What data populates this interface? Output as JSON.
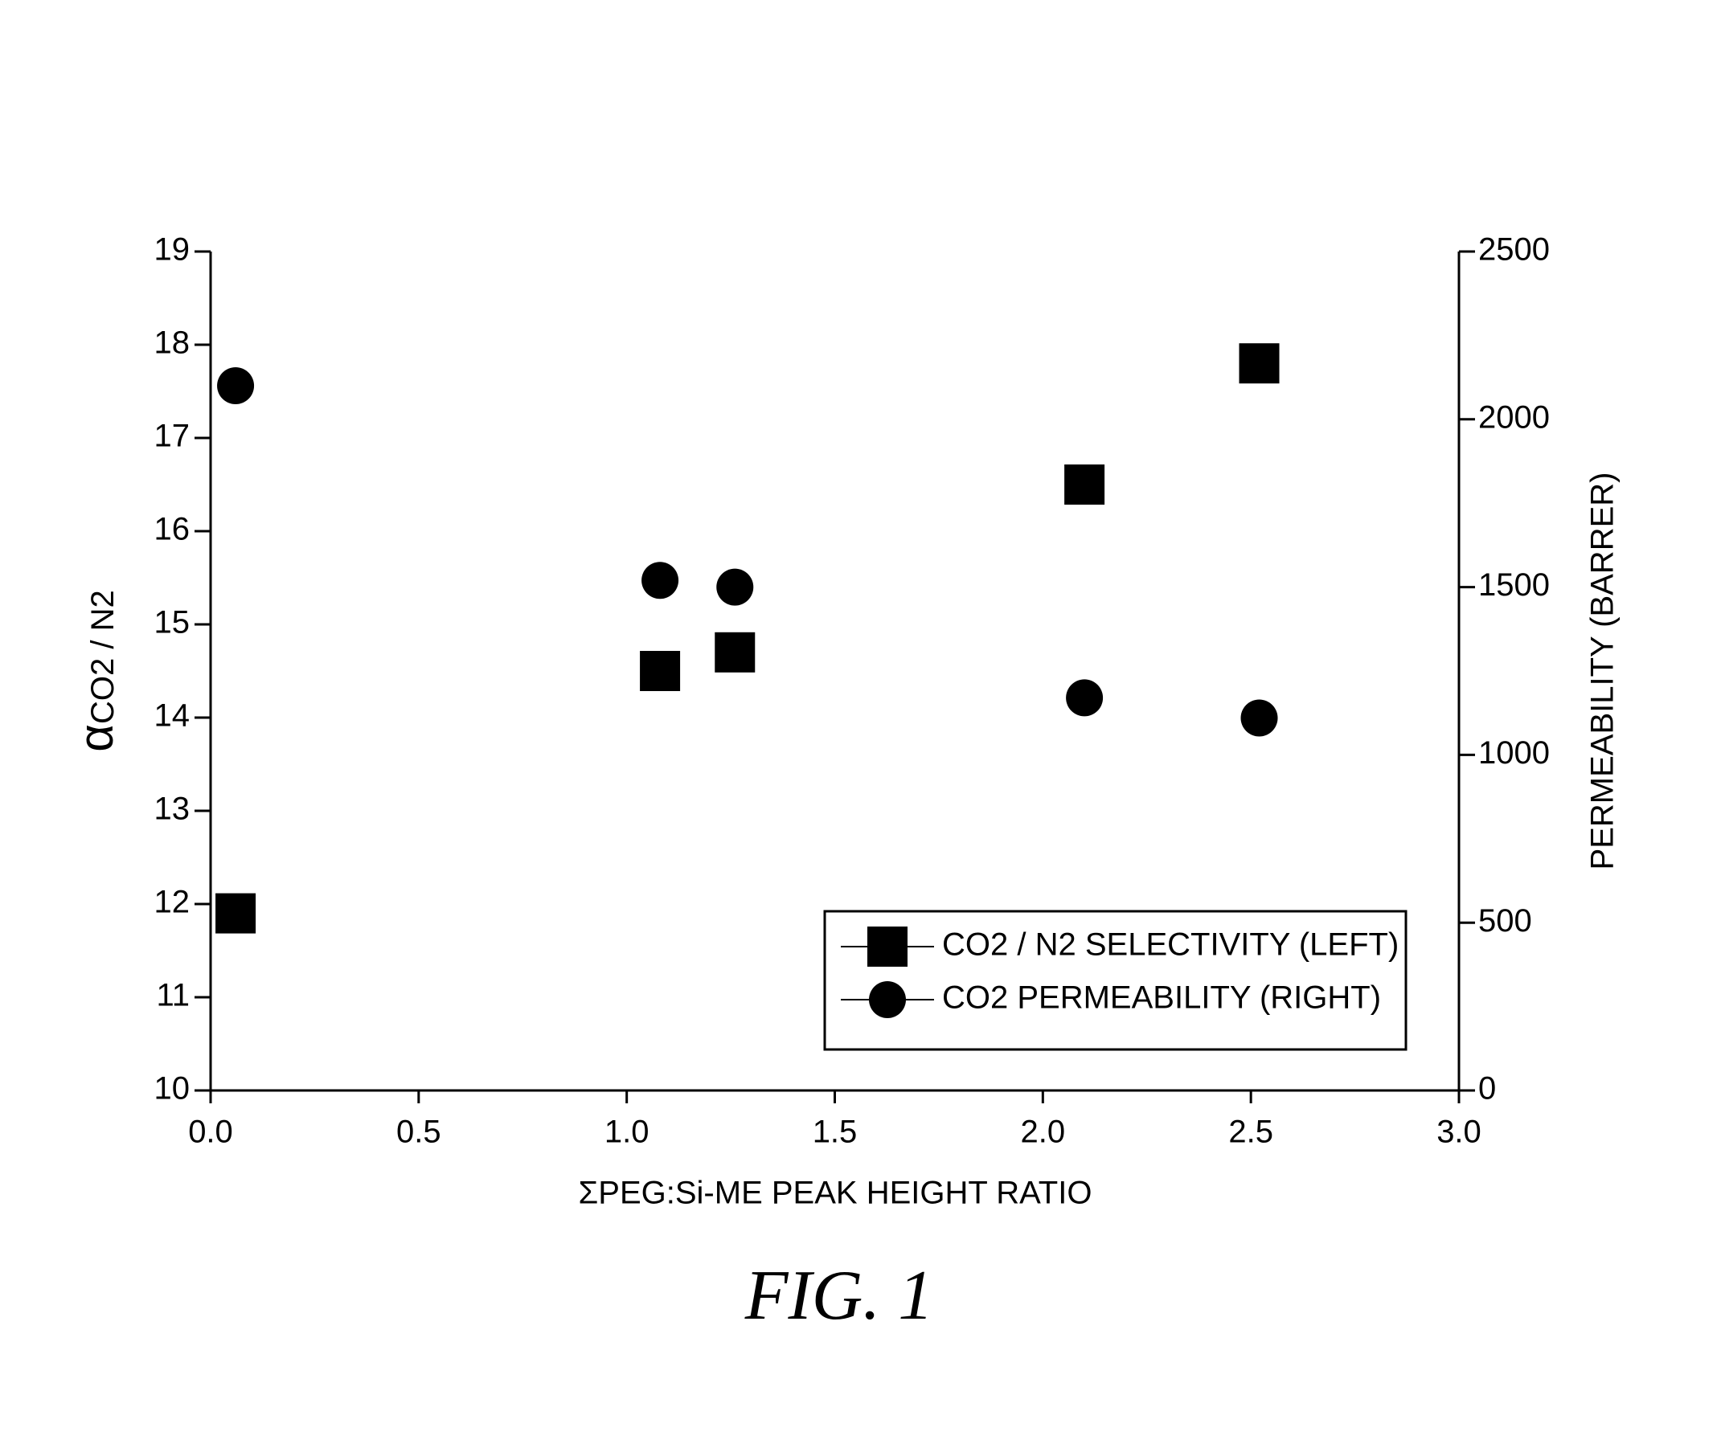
{
  "chart_data": {
    "type": "scatter",
    "x_label": "ΣPEG:Si-ME PEAK HEIGHT RATIO",
    "y_label": "α",
    "y_label_sub": "CO2 / N2",
    "y2_label": "PERMEABILITY (BARRER)",
    "caption": "FIG. 1",
    "xlim": [
      0,
      3
    ],
    "xticks": [
      {
        "value": 0,
        "label": "0.0"
      },
      0.5,
      {
        "value": 1,
        "label": "1.0"
      },
      1.5,
      {
        "value": 2,
        "label": "2.0"
      },
      2.5,
      {
        "value": 3,
        "label": "3.0"
      }
    ],
    "ylim": [
      10,
      19
    ],
    "yticks": [
      10,
      11,
      12,
      13,
      14,
      15,
      16,
      17,
      18,
      19
    ],
    "y2lim": [
      0,
      2500
    ],
    "y2ticks": [
      0,
      500,
      1000,
      1500,
      2000,
      2500
    ],
    "legend": "lower right",
    "series": [
      {
        "name": "CO2 / N2 SELECTIVITY (LEFT)",
        "color": "#000000",
        "marker": "square",
        "x": [
          0.06,
          1.08,
          1.26,
          2.1,
          2.52
        ],
        "values": [
          11.9,
          14.5,
          14.7,
          16.5,
          17.8
        ]
      },
      {
        "name": "CO2 PERMEABILITY (RIGHT)",
        "color": "#000000",
        "marker": "circle",
        "axis": "y2",
        "x": [
          0.06,
          1.08,
          1.26,
          2.1,
          2.52
        ],
        "values": [
          2100,
          1520,
          1500,
          1170,
          1110
        ]
      }
    ]
  }
}
